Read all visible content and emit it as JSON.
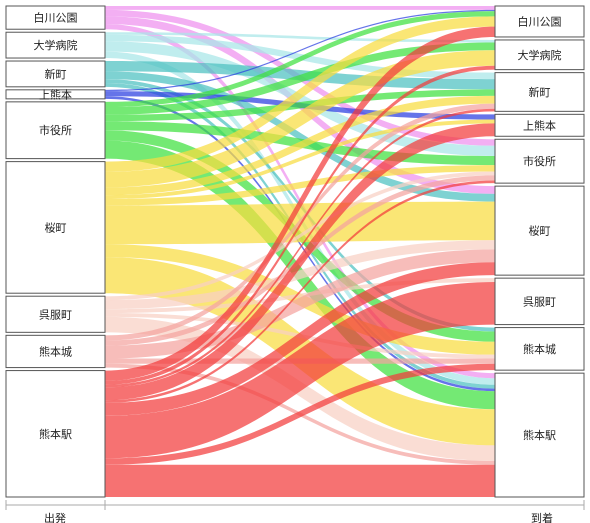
{
  "chart_data": {
    "type": "sankey",
    "title": "",
    "source_axis_label": "出発",
    "target_axis_label": "到着",
    "sources": [
      {
        "name": "白川公園",
        "color": "#ee90ee"
      },
      {
        "name": "大学病院",
        "color": "#a8e6e8"
      },
      {
        "name": "新町",
        "color": "#4cc0c0"
      },
      {
        "name": "上熊本",
        "color": "#2a3fe0"
      },
      {
        "name": "市役所",
        "color": "#3fe03f"
      },
      {
        "name": "桜町",
        "color": "#f8dc40"
      },
      {
        "name": "呉服町",
        "color": "#f8d0c4"
      },
      {
        "name": "熊本城",
        "color": "#f4a4a0"
      },
      {
        "name": "熊本駅",
        "color": "#f23c3c"
      }
    ],
    "targets": [
      "白川公園",
      "大学病院",
      "新町",
      "上熊本",
      "市役所",
      "桜町",
      "呉服町",
      "熊本城",
      "熊本駅"
    ],
    "flows": [
      {
        "from": "白川公園",
        "to": "白川公園",
        "value": 3
      },
      {
        "from": "白川公園",
        "to": "市役所",
        "value": 5
      },
      {
        "from": "白川公園",
        "to": "桜町",
        "value": 6
      },
      {
        "from": "白川公園",
        "to": "熊本駅",
        "value": 4
      },
      {
        "from": "大学病院",
        "to": "大学病院",
        "value": 2
      },
      {
        "from": "大学病院",
        "to": "新町",
        "value": 5
      },
      {
        "from": "大学病院",
        "to": "市役所",
        "value": 8
      },
      {
        "from": "大学病院",
        "to": "熊本駅",
        "value": 5
      },
      {
        "from": "新町",
        "to": "新町",
        "value": 8
      },
      {
        "from": "新町",
        "to": "桜町",
        "value": 6
      },
      {
        "from": "新町",
        "to": "熊本城",
        "value": 3
      },
      {
        "from": "新町",
        "to": "熊本駅",
        "value": 3
      },
      {
        "from": "上熊本",
        "to": "白川公園",
        "value": 1
      },
      {
        "from": "上熊本",
        "to": "上熊本",
        "value": 4
      },
      {
        "from": "上熊本",
        "to": "熊本駅",
        "value": 2
      },
      {
        "from": "市役所",
        "to": "白川公園",
        "value": 4
      },
      {
        "from": "市役所",
        "to": "大学病院",
        "value": 6
      },
      {
        "from": "市役所",
        "to": "新町",
        "value": 5
      },
      {
        "from": "市役所",
        "to": "市役所",
        "value": 7
      },
      {
        "from": "市役所",
        "to": "熊本城",
        "value": 8
      },
      {
        "from": "市役所",
        "to": "熊本駅",
        "value": 14
      },
      {
        "from": "桜町",
        "to": "白川公園",
        "value": 8
      },
      {
        "from": "桜町",
        "to": "大学病院",
        "value": 12
      },
      {
        "from": "桜町",
        "to": "新町",
        "value": 6
      },
      {
        "from": "桜町",
        "to": "上熊本",
        "value": 3
      },
      {
        "from": "桜町",
        "to": "市役所",
        "value": 5
      },
      {
        "from": "桜町",
        "to": "桜町",
        "value": 30
      },
      {
        "from": "桜町",
        "to": "熊本城",
        "value": 10
      },
      {
        "from": "桜町",
        "to": "熊本駅",
        "value": 28
      },
      {
        "from": "呉服町",
        "to": "市役所",
        "value": 3
      },
      {
        "from": "呉服町",
        "to": "桜町",
        "value": 7
      },
      {
        "from": "呉服町",
        "to": "呉服町",
        "value": 3
      },
      {
        "from": "呉服町",
        "to": "熊本城",
        "value": 3
      },
      {
        "from": "呉服町",
        "to": "熊本駅",
        "value": 12
      },
      {
        "from": "熊本城",
        "to": "新町",
        "value": 4
      },
      {
        "from": "熊本城",
        "to": "市役所",
        "value": 4
      },
      {
        "from": "熊本城",
        "to": "桜町",
        "value": 10
      },
      {
        "from": "熊本城",
        "to": "熊本城",
        "value": 4
      },
      {
        "from": "熊本城",
        "to": "熊本駅",
        "value": 3
      },
      {
        "from": "熊本駅",
        "to": "白川公園",
        "value": 8
      },
      {
        "from": "熊本駅",
        "to": "大学病院",
        "value": 3
      },
      {
        "from": "熊本駅",
        "to": "新町",
        "value": 2
      },
      {
        "from": "熊本駅",
        "to": "上熊本",
        "value": 10
      },
      {
        "from": "熊本駅",
        "to": "市役所",
        "value": 2
      },
      {
        "from": "熊本駅",
        "to": "桜町",
        "value": 10
      },
      {
        "from": "熊本駅",
        "to": "呉服町",
        "value": 33
      },
      {
        "from": "熊本駅",
        "to": "熊本城",
        "value": 5
      },
      {
        "from": "熊本駅",
        "to": "熊本駅",
        "value": 25
      }
    ]
  }
}
